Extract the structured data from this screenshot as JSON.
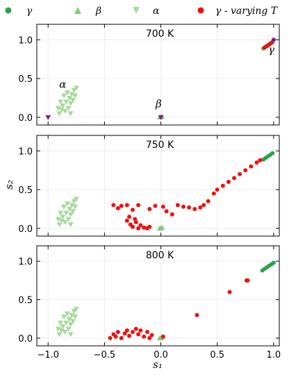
{
  "chart_data": {
    "type": "scatter",
    "legend": {
      "placement": "top",
      "items": [
        {
          "label": "γ",
          "marker": "circle",
          "color": "#2ca04c"
        },
        {
          "label": "β",
          "marker": "triangle-up",
          "color": "#84c77c"
        },
        {
          "label": "α",
          "marker": "triangle-down",
          "color": "#a5d99a"
        },
        {
          "label": "γ - varying T",
          "marker": "circle",
          "color": "#ee1111"
        }
      ]
    },
    "xlabel": "s₁",
    "ylabel": "s₂",
    "xlim": [
      -1.1,
      1.05
    ],
    "ylim": [
      -0.1,
      1.2
    ],
    "xticks": [
      -1.0,
      -0.5,
      0.0,
      0.5,
      1.0
    ],
    "xtick_labels": [
      "−1.0",
      "−0.5",
      "0.0",
      "0.5",
      "1.0"
    ],
    "yticks": [
      0.0,
      0.5,
      1.0
    ],
    "ytick_labels": [
      "0.0",
      "0.5",
      "1.0"
    ],
    "grid": true,
    "panels": [
      {
        "title": "700 K",
        "annotations": [
          {
            "text": "α",
            "x": -0.87,
            "y": 0.38
          },
          {
            "text": "β",
            "x": -0.02,
            "y": 0.13
          },
          {
            "text": "γ",
            "x": 0.98,
            "y": 0.83
          }
        ],
        "series": [
          {
            "name": "α",
            "color": "#a5d99a",
            "marker": "triangle-down",
            "points": [
              [
                -0.9,
                0.05
              ],
              [
                -0.88,
                0.1
              ],
              [
                -0.87,
                0.15
              ],
              [
                -0.85,
                0.08
              ],
              [
                -0.84,
                0.2
              ],
              [
                -0.82,
                0.12
              ],
              [
                -0.81,
                0.25
              ],
              [
                -0.8,
                0.18
              ],
              [
                -0.79,
                0.3
              ],
              [
                -0.78,
                0.22
              ],
              [
                -0.77,
                0.35
              ],
              [
                -0.76,
                0.28
              ],
              [
                -0.86,
                0.28
              ],
              [
                -0.83,
                0.32
              ],
              [
                -0.89,
                0.2
              ],
              [
                -0.75,
                0.38
              ],
              [
                -0.8,
                0.05
              ],
              [
                -0.91,
                0.12
              ]
            ]
          },
          {
            "name": "β",
            "color": "#84c77c",
            "marker": "triangle-up",
            "points": [
              [
                0.0,
                0.0
              ],
              [
                -0.01,
                0.0
              ],
              [
                0.01,
                0.01
              ]
            ]
          },
          {
            "name": "γ",
            "color": "#2ca04c",
            "marker": "circle",
            "points": [
              [
                0.91,
                0.89
              ],
              [
                0.93,
                0.91
              ],
              [
                0.95,
                0.93
              ],
              [
                0.97,
                0.95
              ],
              [
                0.99,
                0.97
              ]
            ]
          },
          {
            "name": "γ - varying T",
            "color": "#ee1111",
            "marker": "circle",
            "points": [
              [
                0.92,
                0.9
              ],
              [
                0.94,
                0.92
              ],
              [
                0.96,
                0.94
              ],
              [
                0.98,
                0.96
              ]
            ]
          },
          {
            "name": "",
            "color": "#8b1a8b",
            "marker": "triangle-down",
            "points": [
              [
                -1.0,
                0.0
              ],
              [
                0.0,
                0.0
              ]
            ]
          },
          {
            "name": "",
            "color": "#8b1a8b",
            "marker": "circle",
            "points": [
              [
                1.0,
                1.0
              ]
            ]
          }
        ]
      },
      {
        "title": "750 K",
        "annotations": [],
        "series": [
          {
            "name": "α",
            "color": "#a5d99a",
            "marker": "triangle-down",
            "points": [
              [
                -0.9,
                0.05
              ],
              [
                -0.88,
                0.1
              ],
              [
                -0.87,
                0.15
              ],
              [
                -0.85,
                0.08
              ],
              [
                -0.84,
                0.2
              ],
              [
                -0.82,
                0.12
              ],
              [
                -0.81,
                0.25
              ],
              [
                -0.8,
                0.18
              ],
              [
                -0.79,
                0.3
              ],
              [
                -0.78,
                0.22
              ],
              [
                -0.77,
                0.35
              ],
              [
                -0.76,
                0.28
              ],
              [
                -0.86,
                0.28
              ],
              [
                -0.83,
                0.32
              ],
              [
                -0.89,
                0.2
              ],
              [
                -0.75,
                0.38
              ],
              [
                -0.8,
                0.05
              ],
              [
                -0.91,
                0.12
              ]
            ]
          },
          {
            "name": "β",
            "color": "#84c77c",
            "marker": "triangle-up",
            "points": [
              [
                0.0,
                0.0
              ],
              [
                -0.01,
                0.0
              ],
              [
                0.01,
                0.01
              ]
            ]
          },
          {
            "name": "γ",
            "color": "#2ca04c",
            "marker": "circle",
            "points": [
              [
                0.91,
                0.89
              ],
              [
                0.93,
                0.91
              ],
              [
                0.95,
                0.93
              ],
              [
                0.97,
                0.95
              ],
              [
                0.99,
                0.97
              ]
            ]
          },
          {
            "name": "γ - varying T",
            "color": "#ee1111",
            "marker": "circle",
            "points": [
              [
                -0.42,
                0.3
              ],
              [
                -0.38,
                0.26
              ],
              [
                -0.35,
                0.29
              ],
              [
                -0.3,
                0.3
              ],
              [
                -0.25,
                0.24
              ],
              [
                -0.2,
                0.3
              ],
              [
                -0.1,
                0.25
              ],
              [
                -0.05,
                0.29
              ],
              [
                -0.3,
                0.1
              ],
              [
                -0.27,
                0.05
              ],
              [
                -0.25,
                0.02
              ],
              [
                -0.22,
                0.08
              ],
              [
                -0.2,
                0.0
              ],
              [
                -0.18,
                0.04
              ],
              [
                -0.15,
                0.01
              ],
              [
                -0.12,
                0.0
              ],
              [
                -0.1,
                0.02
              ],
              [
                -0.28,
                0.15
              ],
              [
                -0.23,
                0.12
              ],
              [
                0.02,
                0.28
              ],
              [
                0.05,
                0.22
              ],
              [
                0.1,
                0.18
              ],
              [
                0.15,
                0.3
              ],
              [
                0.2,
                0.28
              ],
              [
                0.25,
                0.27
              ],
              [
                0.3,
                0.25
              ],
              [
                0.35,
                0.27
              ],
              [
                0.38,
                0.3
              ],
              [
                0.42,
                0.35
              ],
              [
                0.47,
                0.45
              ],
              [
                0.5,
                0.5
              ],
              [
                0.55,
                0.55
              ],
              [
                0.6,
                0.6
              ],
              [
                0.65,
                0.65
              ],
              [
                0.7,
                0.7
              ],
              [
                0.75,
                0.75
              ],
              [
                0.8,
                0.8
              ],
              [
                0.85,
                0.85
              ],
              [
                0.88,
                0.88
              ]
            ]
          }
        ]
      },
      {
        "title": "800 K",
        "annotations": [],
        "series": [
          {
            "name": "α",
            "color": "#a5d99a",
            "marker": "triangle-down",
            "points": [
              [
                -0.9,
                0.05
              ],
              [
                -0.88,
                0.1
              ],
              [
                -0.87,
                0.15
              ],
              [
                -0.85,
                0.08
              ],
              [
                -0.84,
                0.2
              ],
              [
                -0.82,
                0.12
              ],
              [
                -0.81,
                0.25
              ],
              [
                -0.8,
                0.18
              ],
              [
                -0.79,
                0.3
              ],
              [
                -0.78,
                0.22
              ],
              [
                -0.77,
                0.35
              ],
              [
                -0.76,
                0.28
              ],
              [
                -0.86,
                0.28
              ],
              [
                -0.83,
                0.32
              ],
              [
                -0.89,
                0.2
              ],
              [
                -0.75,
                0.38
              ],
              [
                -0.8,
                0.05
              ],
              [
                -0.91,
                0.12
              ]
            ]
          },
          {
            "name": "β",
            "color": "#84c77c",
            "marker": "triangle-up",
            "points": [
              [
                0.0,
                0.0
              ],
              [
                -0.01,
                0.0
              ],
              [
                0.01,
                0.01
              ]
            ]
          },
          {
            "name": "γ",
            "color": "#2ca04c",
            "marker": "circle",
            "points": [
              [
                0.9,
                0.88
              ],
              [
                0.92,
                0.9
              ],
              [
                0.94,
                0.92
              ],
              [
                0.96,
                0.94
              ],
              [
                0.98,
                0.96
              ],
              [
                1.0,
                0.98
              ]
            ]
          },
          {
            "name": "γ - varying T",
            "color": "#ee1111",
            "marker": "circle",
            "points": [
              [
                -0.45,
                0.0
              ],
              [
                -0.42,
                0.05
              ],
              [
                -0.4,
                0.02
              ],
              [
                -0.38,
                0.08
              ],
              [
                -0.35,
                0.0
              ],
              [
                -0.32,
                0.06
              ],
              [
                -0.3,
                0.1
              ],
              [
                -0.28,
                0.03
              ],
              [
                -0.25,
                0.08
              ],
              [
                -0.22,
                0.12
              ],
              [
                -0.2,
                0.05
              ],
              [
                -0.18,
                0.1
              ],
              [
                -0.15,
                0.02
              ],
              [
                -0.12,
                0.08
              ],
              [
                -0.1,
                0.0
              ],
              [
                -0.08,
                0.04
              ],
              [
                0.02,
                0.02
              ],
              [
                0.32,
                0.3
              ],
              [
                0.61,
                0.6
              ],
              [
                0.76,
                0.75
              ],
              [
                0.77,
                0.75
              ]
            ]
          }
        ]
      }
    ]
  }
}
